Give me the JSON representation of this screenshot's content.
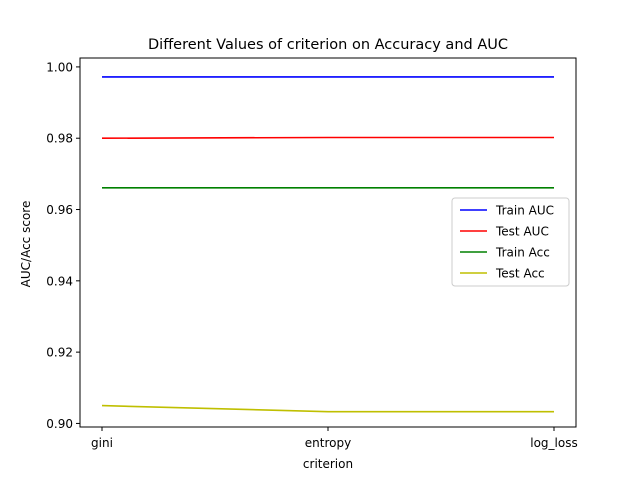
{
  "chart_data": {
    "type": "line",
    "title": "Different Values of criterion on Accuracy and AUC",
    "xlabel": "criterion",
    "ylabel": "AUC/Acc score",
    "categories": [
      "gini",
      "entropy",
      "log_loss"
    ],
    "ylim": [
      0.899,
      1.0025
    ],
    "yticks": [
      0.9,
      0.92,
      0.94,
      0.96,
      0.98,
      1.0
    ],
    "ytick_labels": [
      "0.90",
      "0.92",
      "0.94",
      "0.96",
      "0.98",
      "1.00"
    ],
    "grid": false,
    "legend_position": "center-right",
    "series": [
      {
        "name": "Train AUC",
        "color": "#0000ff",
        "values": [
          0.9972,
          0.9972,
          0.9972
        ]
      },
      {
        "name": "Test AUC",
        "color": "#ff0000",
        "values": [
          0.98,
          0.9802,
          0.9802
        ]
      },
      {
        "name": "Train Acc",
        "color": "#008000",
        "values": [
          0.9661,
          0.9661,
          0.9661
        ]
      },
      {
        "name": "Test Acc",
        "color": "#bfbf00",
        "values": [
          0.905,
          0.9033,
          0.9033
        ]
      }
    ]
  }
}
